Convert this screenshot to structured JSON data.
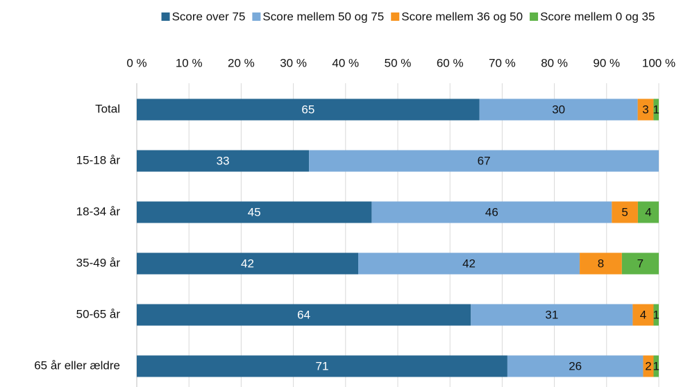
{
  "chart_data": {
    "type": "bar",
    "orientation": "horizontal",
    "stacking": "percent",
    "categories": [
      "Total",
      "15-18 år",
      "18-34 år",
      "35-49 år",
      "50-65 år",
      "65 år eller ældre"
    ],
    "series": [
      {
        "name": "Score over 75",
        "color": "#276791",
        "values": [
          65,
          33,
          45,
          42,
          64,
          71
        ]
      },
      {
        "name": "Score mellem 50 og 75",
        "color": "#7aaad9",
        "values": [
          30,
          67,
          46,
          42,
          31,
          26
        ]
      },
      {
        "name": "Score mellem 36 og 50",
        "color": "#f7931e",
        "values": [
          3,
          null,
          5,
          8,
          4,
          2
        ]
      },
      {
        "name": "Score mellem 0 og 35",
        "color": "#5eb347",
        "values": [
          1,
          null,
          4,
          7,
          1,
          1
        ]
      }
    ],
    "xlim": [
      0,
      100
    ],
    "xticks": [
      {
        "value": 0,
        "label": "0 %"
      },
      {
        "value": 10,
        "label": "10 %"
      },
      {
        "value": 20,
        "label": "20 %"
      },
      {
        "value": 30,
        "label": "30 %"
      },
      {
        "value": 40,
        "label": "40 %"
      },
      {
        "value": 50,
        "label": "50 %"
      },
      {
        "value": 60,
        "label": "60 %"
      },
      {
        "value": 70,
        "label": "70 %"
      },
      {
        "value": 80,
        "label": "80 %"
      },
      {
        "value": 90,
        "label": "90 %"
      },
      {
        "value": 100,
        "label": "100 %"
      }
    ],
    "grid": true,
    "legend": "top"
  }
}
